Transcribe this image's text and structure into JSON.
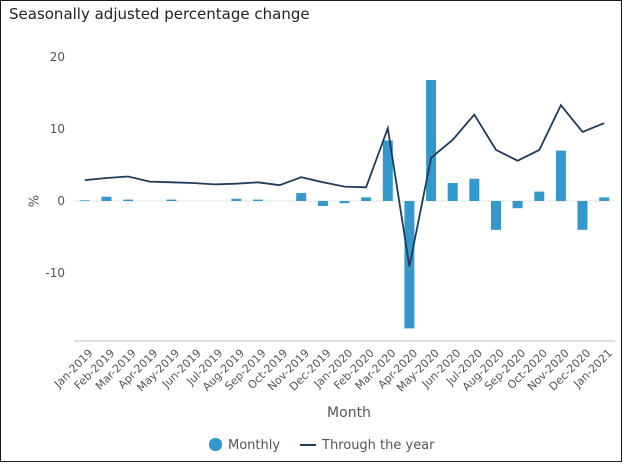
{
  "chart_data": {
    "type": "bar",
    "title": "Seasonally adjusted percentage change",
    "xlabel": "Month",
    "ylabel": "%",
    "ylim": [
      -20,
      20
    ],
    "yticks": [
      20,
      10,
      0,
      -10
    ],
    "grid": false,
    "legend": "bottom",
    "categories": [
      "Jan-2019",
      "Feb-2019",
      "Mar-2019",
      "Apr-2019",
      "May-2019",
      "Jun-2019",
      "Jul-2019",
      "Aug-2019",
      "Sep-2019",
      "Oct-2019",
      "Nov-2019",
      "Dec-2019",
      "Jan-2020",
      "Feb-2020",
      "Mar-2020",
      "Apr-2020",
      "May-2020",
      "Jun-2020",
      "Jul-2020",
      "Aug-2020",
      "Sep-2020",
      "Oct-2020",
      "Nov-2020",
      "Dec-2020",
      "Jan-2021"
    ],
    "series": [
      {
        "name": "Monthly",
        "type": "bar",
        "color": "#3399cc",
        "values": [
          0.1,
          0.6,
          0.2,
          0.0,
          0.2,
          0.0,
          0.0,
          0.3,
          0.2,
          0.0,
          1.1,
          -0.7,
          -0.3,
          0.5,
          8.4,
          -17.7,
          16.8,
          2.5,
          3.1,
          -4.0,
          -1.0,
          1.3,
          7.0,
          -4.0,
          0.5
        ]
      },
      {
        "name": "Through the year",
        "type": "line",
        "color": "#1f3b5c",
        "values": [
          2.9,
          3.2,
          3.4,
          2.7,
          2.6,
          2.5,
          2.3,
          2.4,
          2.6,
          2.2,
          3.3,
          2.6,
          2.0,
          1.9,
          10.1,
          -9.1,
          6.0,
          8.5,
          12.0,
          7.1,
          5.6,
          7.1,
          13.3,
          9.6,
          10.8
        ]
      }
    ]
  }
}
